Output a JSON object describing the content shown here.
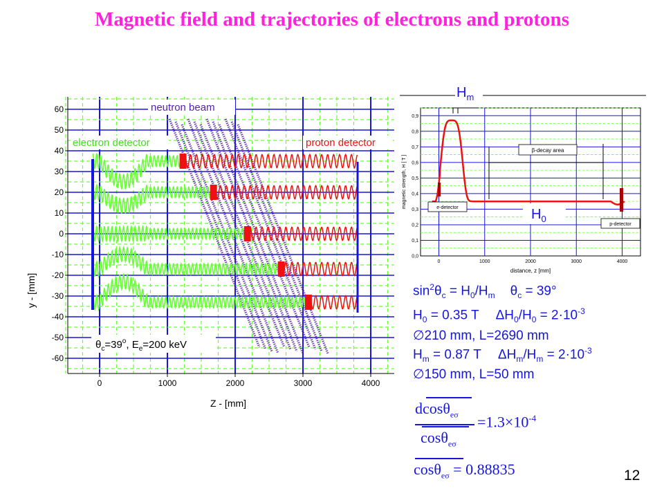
{
  "title": "Magnetic field and trajectories of electrons and protons",
  "page_number": "12",
  "colors": {
    "title": "#ff22dd",
    "blue": "#1515e0",
    "green": "#66ff33",
    "red": "#ee1111",
    "purple": "#5522aa"
  },
  "left_plot": {
    "y_axis_label": "y - [mm]",
    "x_axis_label": "Z - [mm]",
    "y_ticks": [
      "60",
      "50",
      "40",
      "30",
      "20",
      "10",
      "0",
      "-10",
      "-20",
      "-30",
      "-40",
      "-50",
      "-60"
    ],
    "x_ticks": [
      "0",
      "1000",
      "2000",
      "3000",
      "4000"
    ],
    "labels": {
      "neutron_beam": "neutron beam",
      "electron_detector": "electron detector",
      "proton_detector": "proton detector",
      "param_theta_sym": "θ",
      "param_theta_sub": "c",
      "param_theta_val": "=39",
      "param_deg": "o",
      "param_e_mid": ", E",
      "param_e_sub": "e",
      "param_e_val": "=200 keV"
    }
  },
  "right_plot": {
    "y_axis_label": "magnetic strength, H [ T ]",
    "x_axis_label": "distance, z [mm]",
    "y_ticks": [
      "0,9",
      "0,8",
      "0,7",
      "0,6",
      "0,5",
      "0,4",
      "0,3",
      "0,2",
      "0,1",
      "0,0"
    ],
    "x_ticks": [
      "0",
      "1000",
      "2000",
      "3000",
      "4000"
    ],
    "labels": {
      "hm_main": "H",
      "hm_sub": "m",
      "h0_main": "H",
      "h0_sub": "0",
      "beta_decay_area": "β-decay area",
      "e_detector": "e-detector",
      "p_detector": "p-detector"
    }
  },
  "equations": {
    "line1": {
      "a": "sin",
      "a_sup": "2",
      "b": "θ",
      "b_sub": "c",
      "c": " = H",
      "c_sub": "0",
      "d": "/H",
      "d_sub": "m",
      "e": "θ",
      "e_sub": "c",
      "f": " = 39°"
    },
    "line2": {
      "a": "H",
      "a_sub": "0",
      "b": " = 0.35 T",
      "c": "ΔH",
      "c_sub": "0",
      "d": "/H",
      "d_sub": "0",
      "e": " = 2·10",
      "e_sup": "-3"
    },
    "line3": "∅210 mm, L=2690 mm",
    "line4": {
      "a": "H",
      "a_sub": "m",
      "b": " = 0.87 T",
      "c": "ΔH",
      "c_sub": "m",
      "d": "/H",
      "d_sub": "m",
      "e": " = 2·10",
      "e_sup": "-3"
    },
    "line5": "∅150 mm, L=50 mm",
    "frac_num": "dcosθ",
    "frac_num_sub": "eσ",
    "frac_den": "cosθ",
    "frac_den_sub": "eσ",
    "frac_rhs": "=1.3×10",
    "frac_rhs_sup": "-4",
    "avg_lhs": "cosθ",
    "avg_lhs_sub": "eσ",
    "avg_rhs": " = 0.88835"
  }
}
